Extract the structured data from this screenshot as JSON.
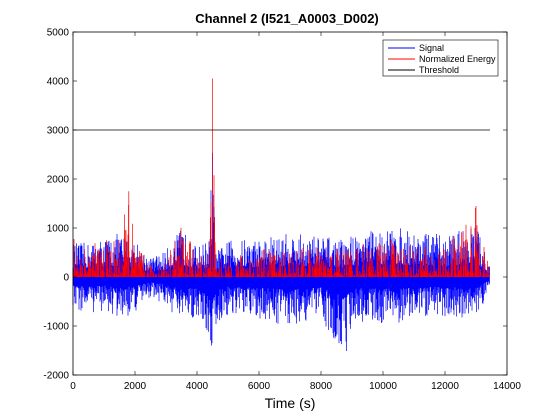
{
  "chart_data": {
    "type": "line",
    "title": "Channel 2 (I521_A0003_D002)",
    "xlabel": "Time (s)",
    "ylabel": "",
    "xlim": [
      0,
      14000
    ],
    "ylim": [
      -2000,
      5000
    ],
    "xticks": [
      0,
      2000,
      4000,
      6000,
      8000,
      10000,
      12000,
      14000
    ],
    "yticks": [
      -2000,
      -1000,
      0,
      1000,
      2000,
      3000,
      4000,
      5000
    ],
    "xtick_labels": [
      "0",
      "2000",
      "4000",
      "6000",
      "8000",
      "10000",
      "12000",
      "14000"
    ],
    "ytick_labels": [
      "-2000",
      "-1000",
      "0",
      "1000",
      "2000",
      "3000",
      "4000",
      "5000"
    ],
    "grid": false,
    "legend_position": "top-right",
    "series": [
      {
        "name": "Signal",
        "color": "#0000ff",
        "style": "dense-oscillation",
        "x": [
          0,
          500,
          1000,
          1500,
          2000,
          2500,
          3000,
          3500,
          4000,
          4400,
          4500,
          4600,
          5000,
          6000,
          7000,
          8000,
          8800,
          9000,
          10000,
          10500,
          11000,
          12000,
          13000,
          13450
        ],
        "upper": [
          700,
          700,
          800,
          900,
          750,
          400,
          550,
          1000,
          600,
          800,
          2900,
          500,
          750,
          800,
          900,
          850,
          750,
          900,
          1000,
          1000,
          950,
          850,
          1100,
          200
        ],
        "lower": [
          -700,
          -750,
          -700,
          -900,
          -750,
          -400,
          -600,
          -1000,
          -800,
          -1300,
          -1650,
          -1050,
          -800,
          -900,
          -1000,
          -850,
          -1650,
          -900,
          -950,
          -950,
          -850,
          -800,
          -900,
          -200
        ]
      },
      {
        "name": "Normalized Energy",
        "color": "#ff0000",
        "style": "dense-spikes",
        "x": [
          0,
          500,
          1000,
          1500,
          1800,
          2000,
          2500,
          3000,
          3500,
          4000,
          4400,
          4500,
          4600,
          5000,
          6000,
          7000,
          8000,
          9000,
          10000,
          10500,
          11000,
          12000,
          13000,
          13450
        ],
        "upper": [
          1000,
          700,
          750,
          800,
          1750,
          700,
          250,
          350,
          1150,
          450,
          650,
          4050,
          300,
          400,
          550,
          650,
          600,
          650,
          750,
          800,
          650,
          600,
          1450,
          100
        ]
      },
      {
        "name": "Threshold",
        "color": "#000000",
        "x": [
          0,
          13450
        ],
        "values": [
          3000,
          3000
        ]
      }
    ]
  }
}
